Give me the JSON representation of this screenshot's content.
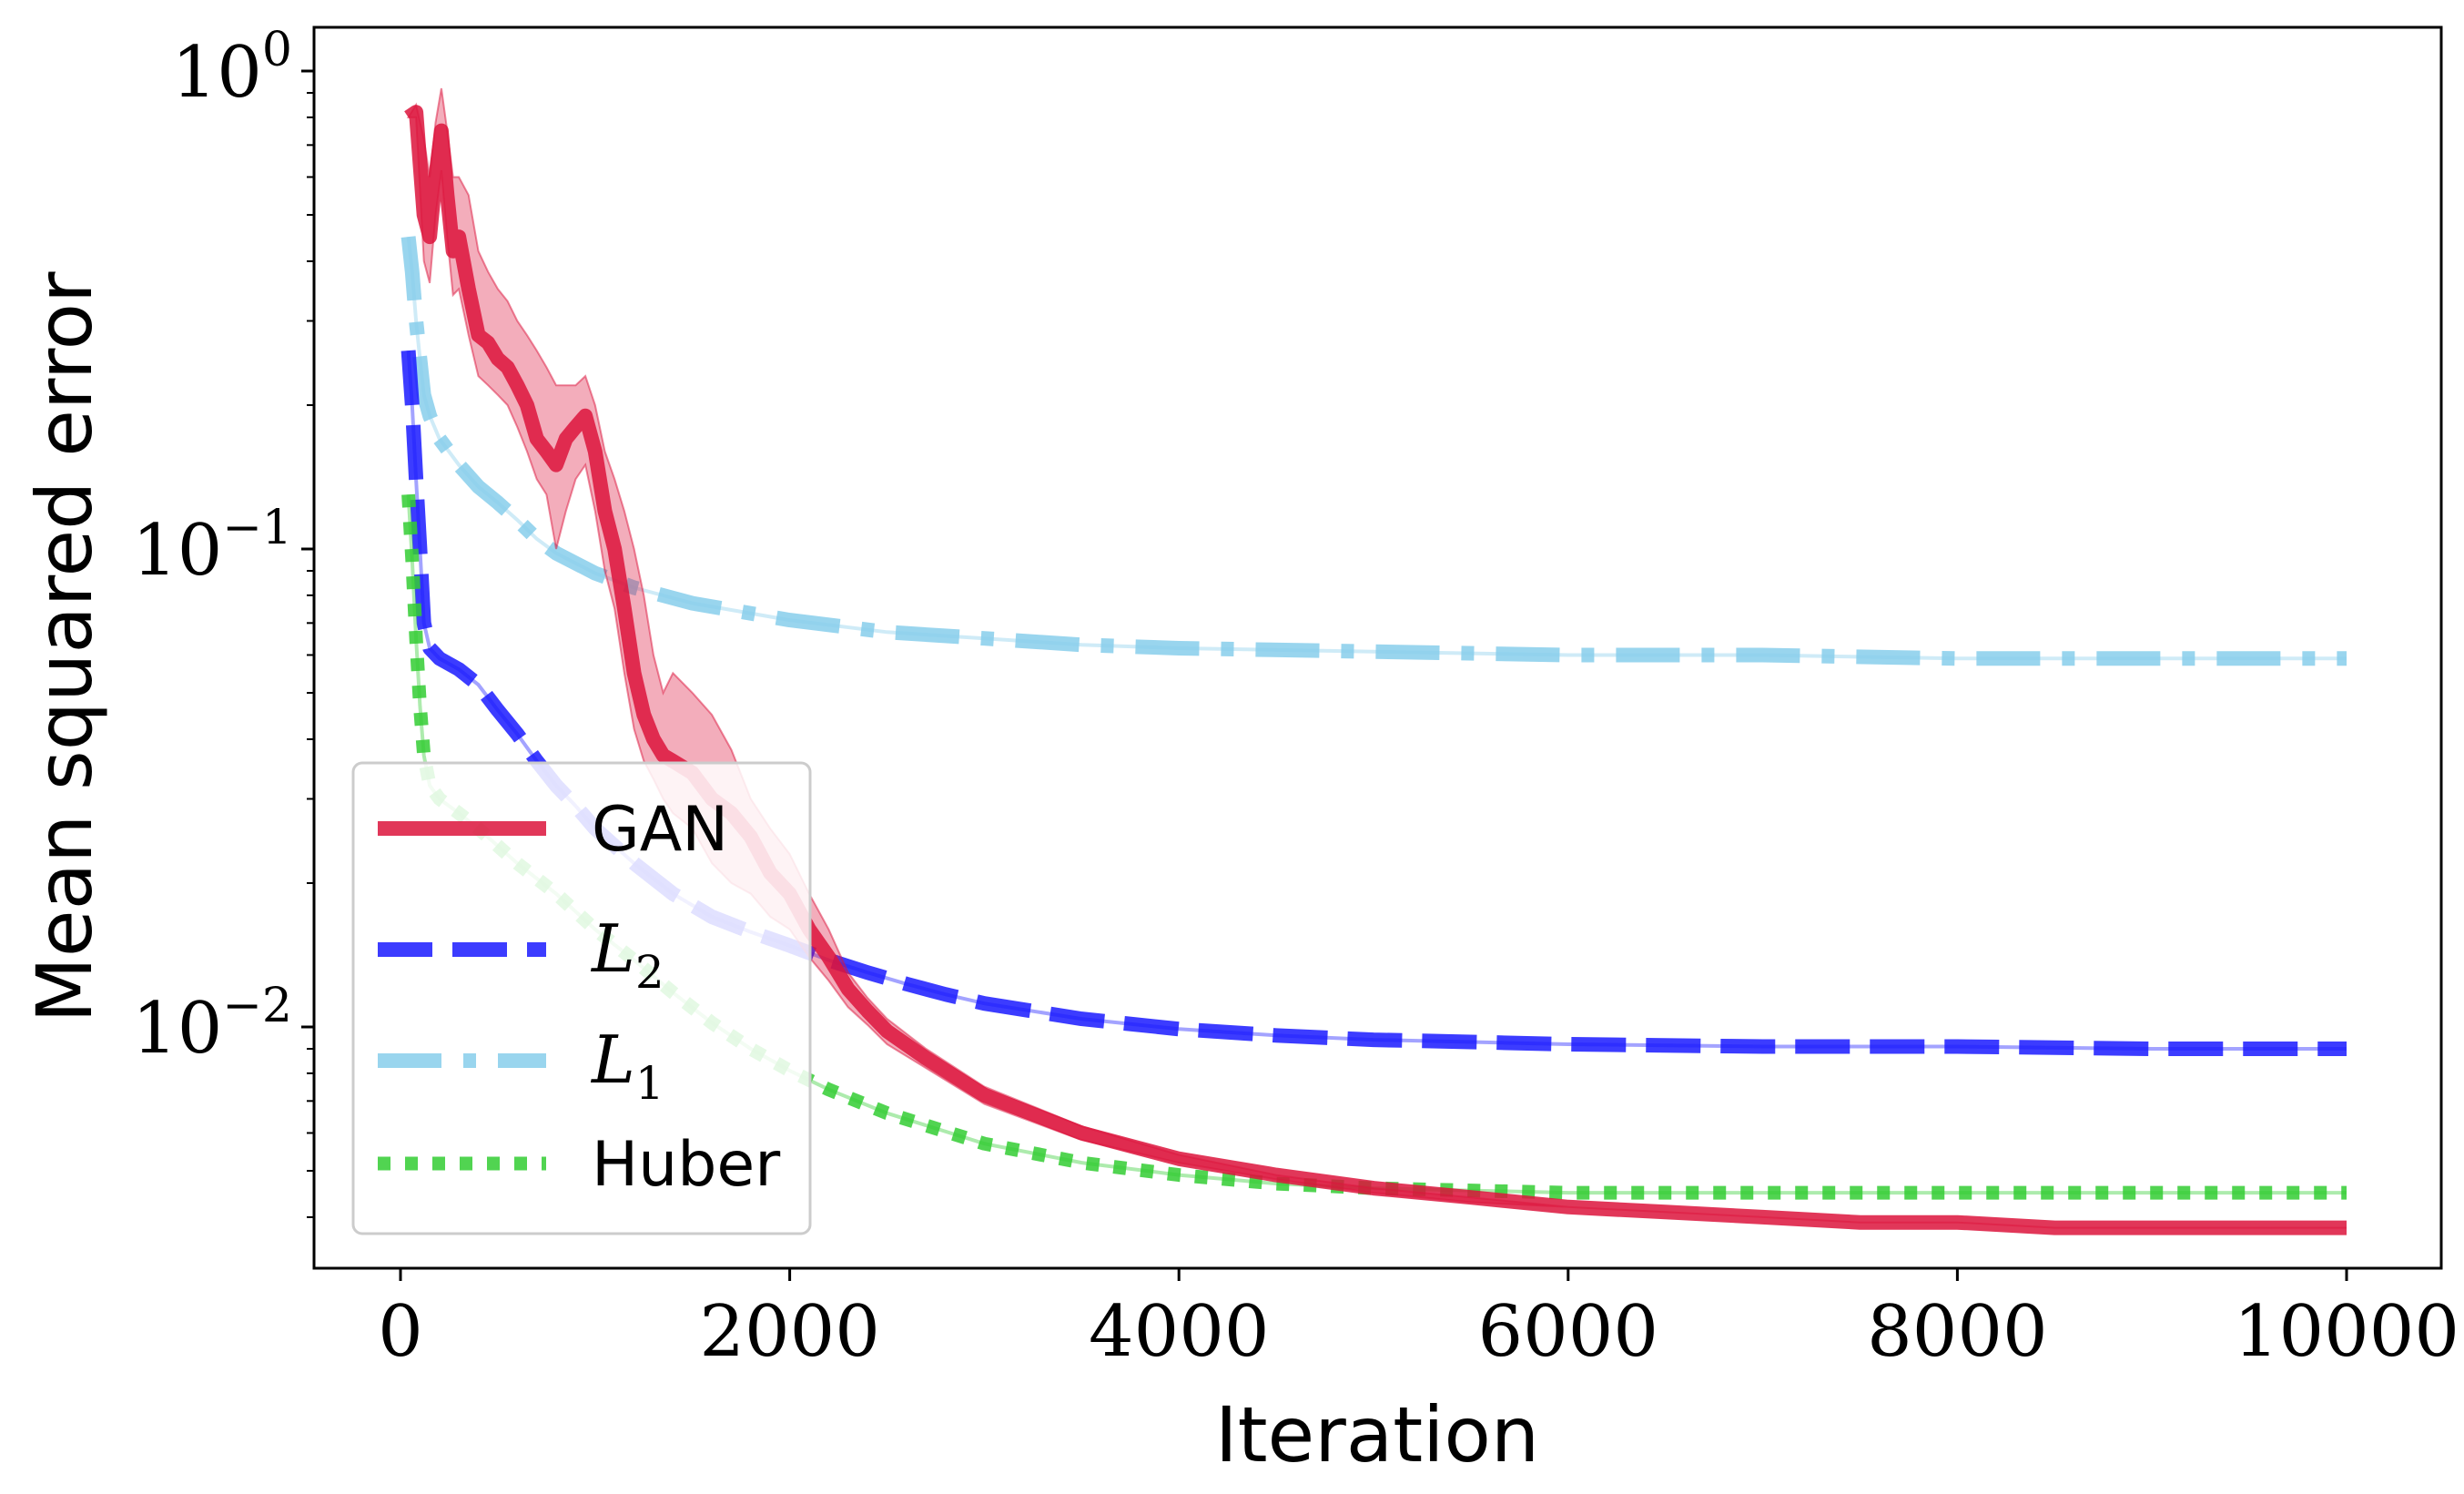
{
  "chart_data": {
    "type": "line",
    "title": "",
    "xlabel": "Iteration",
    "ylabel": "Mean squared error",
    "yscale": "log",
    "xlim": [
      -450,
      10500
    ],
    "ylim": [
      0.0031,
      1.2
    ],
    "x_ticks": [
      0,
      2000,
      4000,
      6000,
      8000,
      10000
    ],
    "x_tick_labels": [
      "0",
      "2000",
      "4000",
      "6000",
      "8000",
      "10000"
    ],
    "y_ticks": [
      {
        "value": 1.0,
        "base": "10",
        "exp": "0"
      },
      {
        "value": 0.1,
        "base": "10",
        "exp": "−1"
      },
      {
        "value": 0.01,
        "base": "10",
        "exp": "−2"
      }
    ],
    "grid": false,
    "legend": {
      "position": "lower-left",
      "entries": [
        {
          "series": "GAN",
          "label": "GAN",
          "math": false,
          "sub": ""
        },
        {
          "series": "L2",
          "label": "L",
          "math": true,
          "sub": "2"
        },
        {
          "series": "L1",
          "label": "L",
          "math": true,
          "sub": "1"
        },
        {
          "series": "Huber",
          "label": "Huber",
          "math": false,
          "sub": ""
        }
      ]
    },
    "series": [
      {
        "name": "GAN",
        "color": "#dc143c",
        "style": "solid",
        "band": true,
        "x": [
          40,
          80,
          120,
          150,
          180,
          210,
          240,
          270,
          300,
          350,
          400,
          450,
          500,
          550,
          600,
          650,
          700,
          750,
          800,
          850,
          900,
          950,
          1000,
          1050,
          1100,
          1150,
          1200,
          1250,
          1300,
          1350,
          1400,
          1500,
          1600,
          1700,
          1800,
          1900,
          2000,
          2100,
          2200,
          2300,
          2400,
          2500,
          2700,
          3000,
          3500,
          4000,
          4500,
          5000,
          5500,
          6000,
          6500,
          7000,
          7500,
          8000,
          8500,
          9000,
          9500,
          10000
        ],
        "y": [
          0.8,
          0.82,
          0.5,
          0.45,
          0.6,
          0.75,
          0.55,
          0.42,
          0.45,
          0.35,
          0.28,
          0.27,
          0.25,
          0.24,
          0.22,
          0.2,
          0.17,
          0.16,
          0.15,
          0.17,
          0.18,
          0.19,
          0.16,
          0.12,
          0.1,
          0.075,
          0.055,
          0.045,
          0.04,
          0.037,
          0.036,
          0.034,
          0.03,
          0.028,
          0.025,
          0.021,
          0.019,
          0.016,
          0.014,
          0.012,
          0.0108,
          0.0098,
          0.0086,
          0.0072,
          0.006,
          0.0053,
          0.0049,
          0.0046,
          0.0044,
          0.0042,
          0.0041,
          0.004,
          0.0039,
          0.0039,
          0.0038,
          0.0038,
          0.0038,
          0.0038
        ],
        "upper": [
          0.8,
          0.85,
          0.72,
          0.6,
          0.78,
          0.92,
          0.75,
          0.6,
          0.6,
          0.55,
          0.42,
          0.38,
          0.35,
          0.33,
          0.3,
          0.28,
          0.26,
          0.24,
          0.22,
          0.22,
          0.22,
          0.23,
          0.2,
          0.16,
          0.14,
          0.12,
          0.1,
          0.08,
          0.06,
          0.05,
          0.055,
          0.05,
          0.045,
          0.038,
          0.03,
          0.026,
          0.023,
          0.019,
          0.016,
          0.013,
          0.0115,
          0.0104,
          0.009,
          0.0075,
          0.0062,
          0.0054,
          0.0049,
          0.0046,
          0.0044,
          0.0042,
          0.0041,
          0.004,
          0.0039,
          0.0039,
          0.0038,
          0.0038,
          0.0038,
          0.0038
        ],
        "lower": [
          0.8,
          0.8,
          0.4,
          0.36,
          0.5,
          0.62,
          0.45,
          0.34,
          0.35,
          0.28,
          0.23,
          0.22,
          0.21,
          0.2,
          0.18,
          0.16,
          0.14,
          0.13,
          0.1,
          0.12,
          0.14,
          0.15,
          0.12,
          0.09,
          0.075,
          0.055,
          0.042,
          0.036,
          0.033,
          0.03,
          0.028,
          0.026,
          0.022,
          0.02,
          0.019,
          0.017,
          0.016,
          0.014,
          0.0125,
          0.011,
          0.0101,
          0.0092,
          0.0082,
          0.0069,
          0.0058,
          0.0052,
          0.0048,
          0.0045,
          0.0043,
          0.0042,
          0.0041,
          0.004,
          0.0039,
          0.0039,
          0.0038,
          0.0038,
          0.0038,
          0.0038
        ]
      },
      {
        "name": "L2",
        "color": "#1a1aff",
        "style": "dashed",
        "band": false,
        "x": [
          40,
          60,
          80,
          100,
          120,
          150,
          200,
          300,
          400,
          500,
          600,
          700,
          800,
          900,
          1000,
          1200,
          1400,
          1600,
          1800,
          2000,
          2200,
          2400,
          2600,
          2800,
          3000,
          3500,
          4000,
          4500,
          5000,
          5500,
          6000,
          7000,
          8000,
          9000,
          10000
        ],
        "y": [
          0.26,
          0.2,
          0.14,
          0.1,
          0.07,
          0.062,
          0.059,
          0.056,
          0.052,
          0.046,
          0.041,
          0.036,
          0.032,
          0.029,
          0.026,
          0.022,
          0.019,
          0.017,
          0.0158,
          0.0148,
          0.0138,
          0.013,
          0.0123,
          0.0117,
          0.0112,
          0.0104,
          0.0099,
          0.0096,
          0.0094,
          0.0093,
          0.0092,
          0.0091,
          0.0091,
          0.009,
          0.009
        ]
      },
      {
        "name": "L1",
        "color": "#87ceeb",
        "style": "dashdot",
        "band": false,
        "x": [
          40,
          60,
          80,
          100,
          120,
          150,
          200,
          300,
          400,
          500,
          600,
          700,
          800,
          1000,
          1200,
          1500,
          2000,
          2500,
          3000,
          3500,
          4000,
          5000,
          6000,
          7000,
          8000,
          9000,
          10000
        ],
        "y": [
          0.45,
          0.38,
          0.3,
          0.25,
          0.21,
          0.19,
          0.17,
          0.15,
          0.135,
          0.125,
          0.115,
          0.105,
          0.098,
          0.089,
          0.083,
          0.077,
          0.071,
          0.067,
          0.065,
          0.063,
          0.062,
          0.061,
          0.06,
          0.06,
          0.059,
          0.059,
          0.059
        ]
      },
      {
        "name": "Huber",
        "color": "#32cd32",
        "style": "dotted",
        "band": false,
        "x": [
          40,
          60,
          80,
          100,
          120,
          150,
          200,
          300,
          400,
          600,
          800,
          1000,
          1200,
          1400,
          1600,
          1800,
          2000,
          2200,
          2500,
          3000,
          3500,
          4000,
          4500,
          5000,
          6000,
          7000,
          8000,
          9000,
          10000
        ],
        "y": [
          0.13,
          0.095,
          0.065,
          0.047,
          0.037,
          0.032,
          0.03,
          0.028,
          0.026,
          0.022,
          0.019,
          0.016,
          0.0138,
          0.0118,
          0.0102,
          0.009,
          0.0081,
          0.0074,
          0.0066,
          0.0057,
          0.0052,
          0.0049,
          0.0047,
          0.0046,
          0.0045,
          0.0045,
          0.0045,
          0.0045,
          0.0045
        ]
      }
    ]
  }
}
